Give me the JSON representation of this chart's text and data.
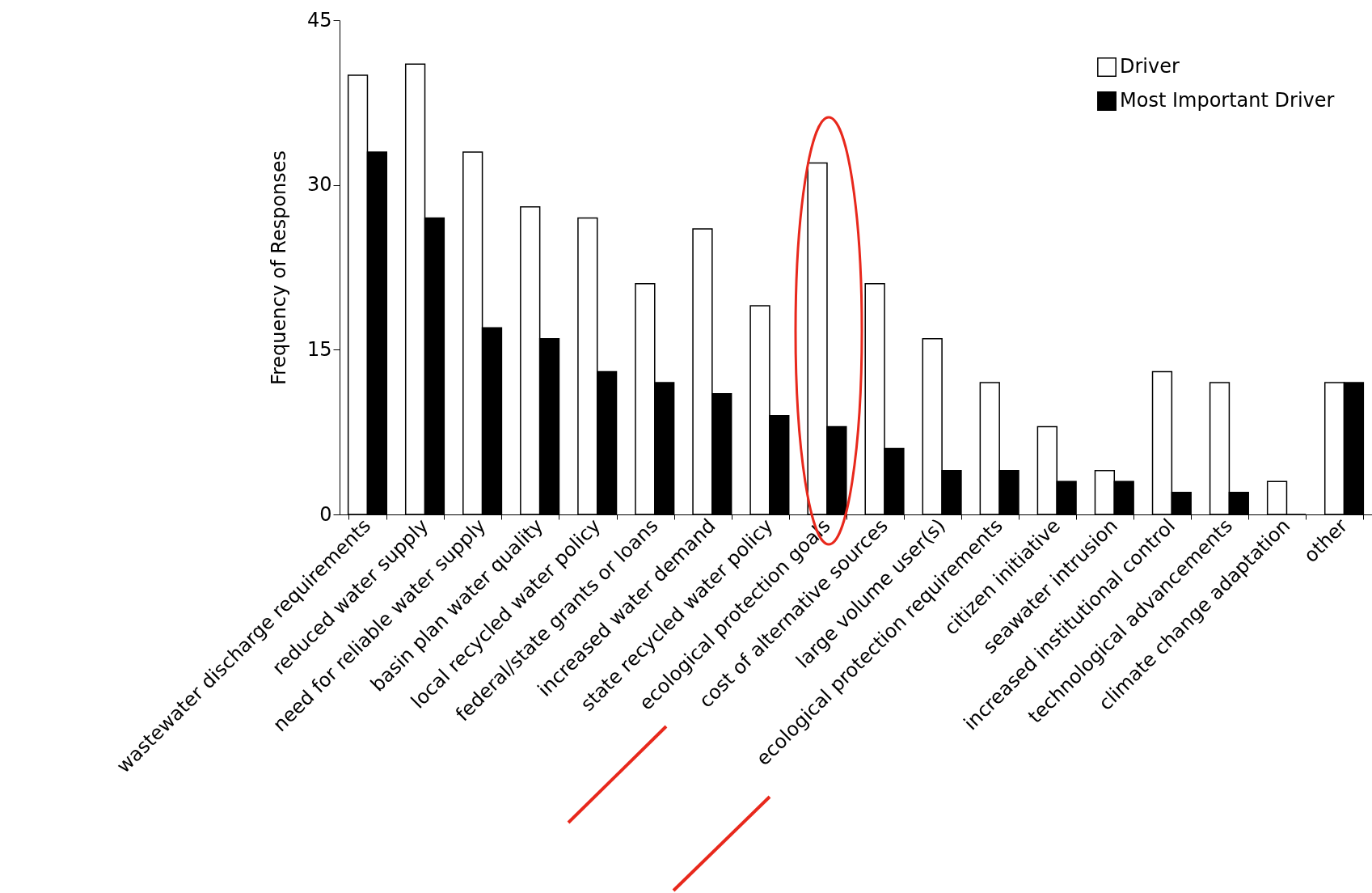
{
  "chart_data": {
    "type": "bar",
    "ylabel": "Frequency of Responses",
    "categories": [
      "wastewater discharge requirements",
      "reduced water supply",
      "need for reliable water supply",
      "basin plan water quality",
      "local recycled water policy",
      "federal/state grants or loans",
      "increased water demand",
      "state recycled water policy",
      "ecological protection goals",
      "cost of alternative sources",
      "large volume user(s)",
      "ecological protection requirements",
      "citizen initiative",
      "seawater intrusion",
      "increased institutional control",
      "technological advancements",
      "climate change adaptation",
      "other"
    ],
    "series": [
      {
        "name": "Driver",
        "color": "#ffffff",
        "values": [
          40,
          41,
          33,
          28,
          27,
          21,
          26,
          19,
          32,
          21,
          16,
          12,
          8,
          4,
          13,
          12,
          3,
          12
        ]
      },
      {
        "name": "Most Important Driver",
        "color": "#000000",
        "values": [
          33,
          27,
          17,
          16,
          13,
          12,
          11,
          9,
          8,
          6,
          4,
          4,
          3,
          3,
          2,
          2,
          0,
          12
        ]
      }
    ],
    "ylim": [
      0,
      45
    ],
    "yticks": [
      0,
      15,
      30,
      45
    ],
    "grid": false,
    "legend": "top right"
  }
}
